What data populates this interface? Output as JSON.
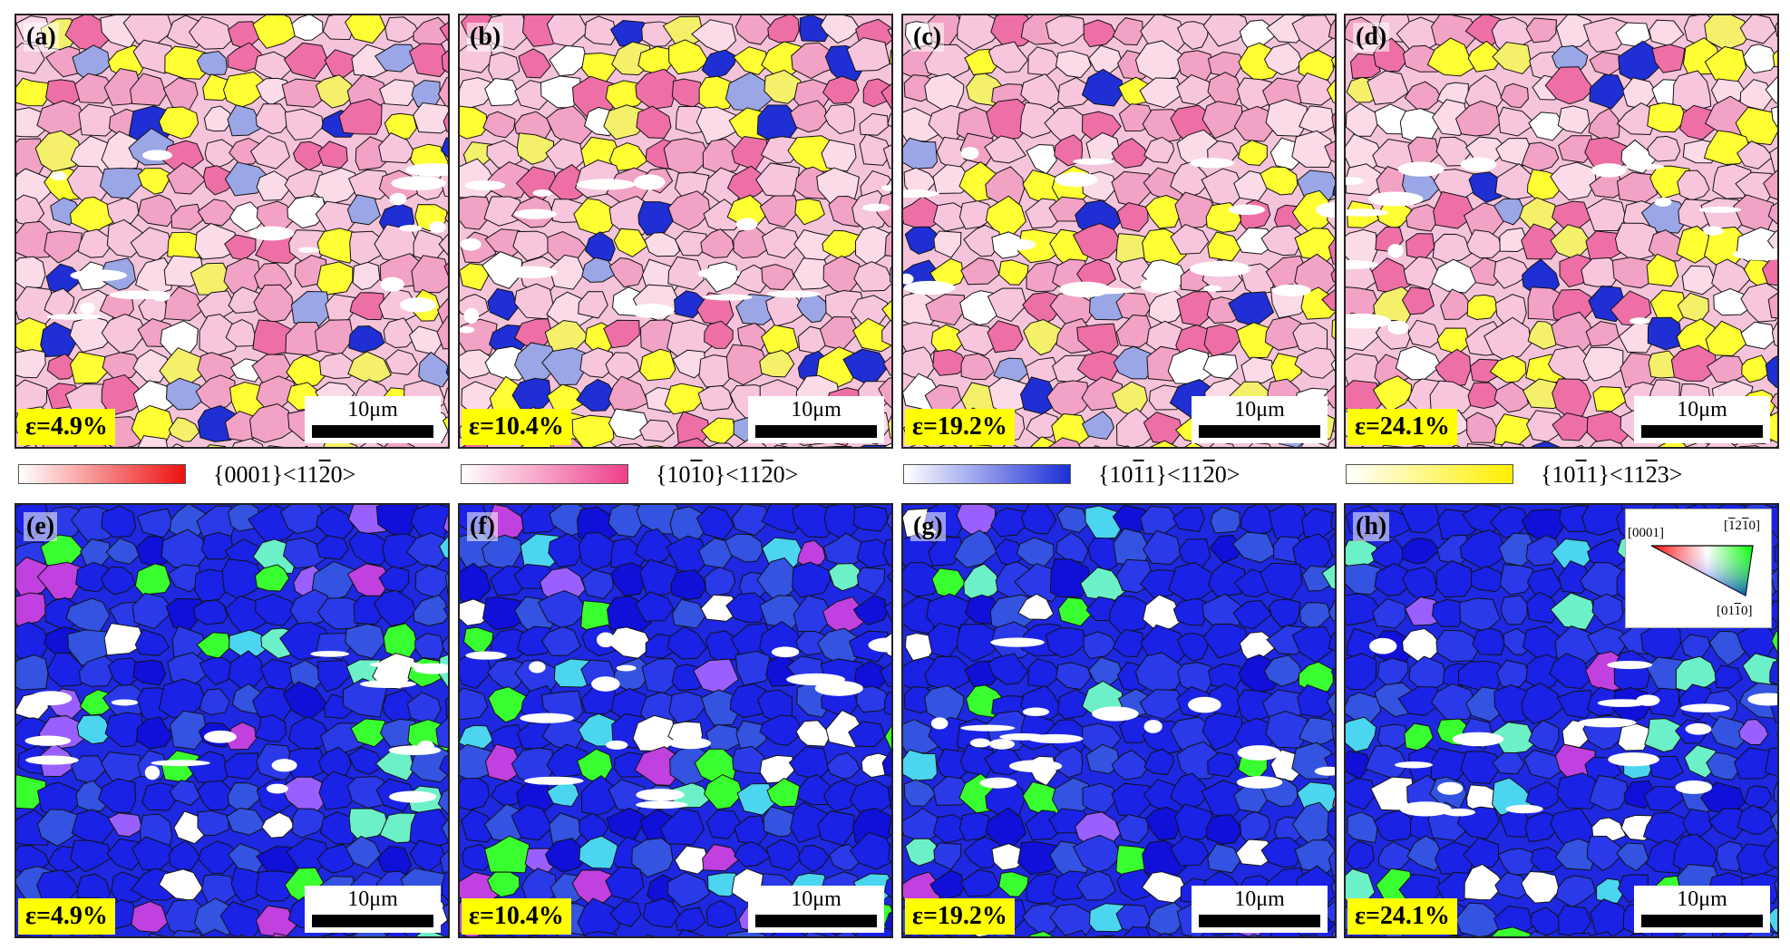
{
  "strain_panels_top": [
    {
      "label": "(a)",
      "strain": "ε=4.9%",
      "scale": "10μm"
    },
    {
      "label": "(b)",
      "strain": "ε=10.4%",
      "scale": "10μm"
    },
    {
      "label": "(c)",
      "strain": "ε=19.2%",
      "scale": "10μm"
    },
    {
      "label": "(d)",
      "strain": "ε=24.1%",
      "scale": "10μm"
    }
  ],
  "strain_panels_bottom": [
    {
      "label": "(e)",
      "strain": "ε=4.9%",
      "scale": "10μm"
    },
    {
      "label": "(f)",
      "strain": "ε=10.4%",
      "scale": "10μm"
    },
    {
      "label": "(g)",
      "strain": "ε=19.2%",
      "scale": "10μm"
    },
    {
      "label": "(h)",
      "strain": "ε=24.1%",
      "scale": "10μm"
    }
  ],
  "legend": [
    {
      "name": "{0001}<1120>",
      "pre": "{0001}<11",
      "over": "2",
      "post": "0>",
      "color_start": "#ffffff",
      "color_end": "#ee1111"
    },
    {
      "name": "{1010}<1120>",
      "pre": "{10",
      "over": "1",
      "mid": "0}<11",
      "over2": "2",
      "post": "0>",
      "color_start": "#ffffff",
      "color_end": "#ee3f8a"
    },
    {
      "name": "{1011}<1120>",
      "pre": "{10",
      "over": "1",
      "mid": "1}<11",
      "over2": "2",
      "post": "0>",
      "color_start": "#ffffff",
      "color_end": "#1b2fd6"
    },
    {
      "name": "{1011}<1123>",
      "pre": "{10",
      "over": "1",
      "mid": "1}<11",
      "over2": "2",
      "post": "3>",
      "color_start": "#ffffff",
      "color_end": "#ffef00"
    }
  ],
  "ipf_key": {
    "corner_0001": "[0001]",
    "corner_top_right_pre": "[",
    "corner_top_right_o1": "1",
    "corner_top_right_mid": "2",
    "corner_top_right_o2": "1",
    "corner_top_right_post": "0]",
    "corner_bottom_pre": "[01",
    "corner_bottom_o": "1",
    "corner_bottom_post": "0]",
    "color_red": "#ff0000",
    "color_green": "#00ff00",
    "color_blue": "#0000ff"
  },
  "palette": {
    "texture_colors": [
      "#f7c6dc",
      "#f2a2c4",
      "#ee6fa6",
      "#fbdbe8",
      "#ffff33",
      "#f4f06a",
      "#1f2fd4",
      "#9aa6e6",
      "#ffffff"
    ],
    "ipf_colors": [
      "#1a22e6",
      "#2a3ae8",
      "#3353e0",
      "#1010d8",
      "#39ff30",
      "#6cf0c8",
      "#9a60ff",
      "#c040e0",
      "#4bd5f0",
      "#ffffff"
    ]
  }
}
